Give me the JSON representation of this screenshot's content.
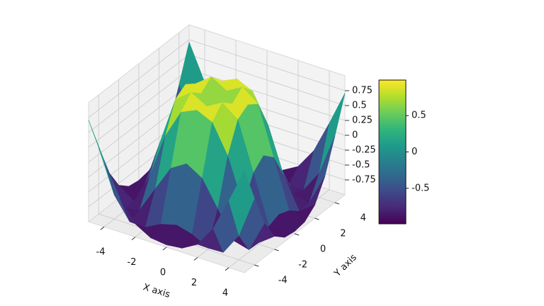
{
  "chart_data": {
    "type": "surface3d",
    "x_label": "X axis",
    "y_label": "Y axis",
    "x": [
      -5,
      -4,
      -3,
      -2,
      -1,
      0,
      1,
      2,
      3,
      4,
      5
    ],
    "y": [
      -5,
      -4,
      -3,
      -2,
      -1,
      0,
      1,
      2,
      3,
      4,
      5
    ],
    "z": [
      [
        0.71,
        0.12,
        -0.43,
        -0.78,
        -0.93,
        -0.96,
        -0.93,
        -0.78,
        -0.43,
        0.12,
        0.71
      ],
      [
        0.12,
        -0.59,
        -0.96,
        -0.97,
        -0.83,
        -0.76,
        -0.83,
        -0.97,
        -0.96,
        -0.59,
        0.12
      ],
      [
        -0.43,
        -0.96,
        -0.89,
        -0.45,
        -0.02,
        0.14,
        -0.02,
        -0.45,
        -0.89,
        -0.96,
        -0.43
      ],
      [
        -0.78,
        -0.97,
        -0.45,
        0.31,
        0.79,
        0.91,
        0.79,
        0.31,
        -0.45,
        -0.97,
        -0.78
      ],
      [
        -0.93,
        -0.83,
        -0.02,
        0.79,
        0.99,
        0.84,
        0.99,
        0.79,
        -0.02,
        -0.83,
        -0.93
      ],
      [
        -0.96,
        -0.76,
        0.14,
        0.91,
        0.84,
        0,
        0.84,
        0.91,
        0.14,
        -0.76,
        -0.96
      ],
      [
        -0.93,
        -0.83,
        -0.02,
        0.79,
        0.99,
        0.84,
        0.99,
        0.79,
        -0.02,
        -0.83,
        -0.93
      ],
      [
        -0.78,
        -0.97,
        -0.45,
        0.31,
        0.79,
        0.91,
        0.79,
        0.31,
        -0.45,
        -0.97,
        -0.78
      ],
      [
        -0.43,
        -0.96,
        -0.89,
        -0.45,
        -0.02,
        0.14,
        -0.02,
        -0.45,
        -0.89,
        -0.96,
        -0.43
      ],
      [
        0.12,
        -0.59,
        -0.96,
        -0.97,
        -0.83,
        -0.76,
        -0.83,
        -0.97,
        -0.96,
        -0.59,
        0.12
      ],
      [
        0.71,
        0.12,
        -0.43,
        -0.78,
        -0.93,
        -0.96,
        -0.93,
        -0.78,
        -0.43,
        0.12,
        0.71
      ]
    ],
    "xlim": [
      -5,
      5
    ],
    "ylim": [
      -5,
      5
    ],
    "zlim": [
      -1,
      1
    ],
    "xticks": [
      -4,
      -2,
      0,
      2,
      4
    ],
    "yticks": [
      -4,
      -2,
      0,
      2,
      4
    ],
    "zticks": [
      -0.75,
      -0.5,
      -0.25,
      0,
      0.25,
      0.5,
      0.75
    ],
    "colormap": "viridis",
    "clim": [
      -0.99,
      0.99
    ],
    "colorbar_ticks": [
      -0.5,
      0,
      0.5
    ],
    "grid": true
  }
}
